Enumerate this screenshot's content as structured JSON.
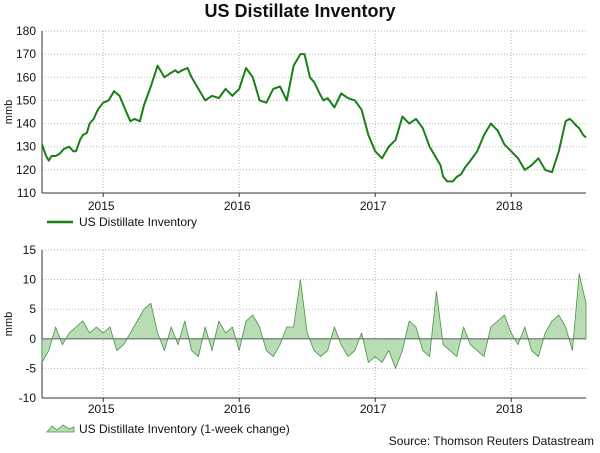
{
  "title": "US Distillate Inventory",
  "source": "Source: Thomson Reuters Datastream",
  "colors": {
    "line": "#1a7f14",
    "area_fill": "#b8dcb3",
    "area_stroke": "#4a9246",
    "grid": "#b5b5b5"
  },
  "chart_data": [
    {
      "type": "line",
      "title": "US Distillate Inventory",
      "ylabel": "mmb",
      "ylim": [
        110,
        180
      ],
      "yticks": [
        110,
        120,
        130,
        140,
        150,
        160,
        170,
        180
      ],
      "xlim": [
        2014.55,
        2018.55
      ],
      "xtick_labels": [
        "2015",
        "2016",
        "2017",
        "2018"
      ],
      "xtick_positions": [
        2015,
        2016,
        2017,
        2018
      ],
      "legend": "bottom-left",
      "grid": true,
      "series": [
        {
          "name": "US Distillate Inventory",
          "x": [
            2014.55,
            2014.58,
            2014.6,
            2014.62,
            2014.65,
            2014.68,
            2014.71,
            2014.75,
            2014.78,
            2014.8,
            2014.83,
            2014.85,
            2014.88,
            2014.9,
            2014.93,
            2014.96,
            2015.0,
            2015.04,
            2015.08,
            2015.12,
            2015.17,
            2015.2,
            2015.23,
            2015.27,
            2015.3,
            2015.35,
            2015.4,
            2015.45,
            2015.5,
            2015.53,
            2015.55,
            2015.58,
            2015.62,
            2015.65,
            2015.7,
            2015.75,
            2015.8,
            2015.85,
            2015.9,
            2015.95,
            2016.0,
            2016.05,
            2016.1,
            2016.15,
            2016.2,
            2016.25,
            2016.3,
            2016.35,
            2016.4,
            2016.45,
            2016.48,
            2016.5,
            2016.52,
            2016.55,
            2016.6,
            2016.62,
            2016.65,
            2016.7,
            2016.75,
            2016.8,
            2016.85,
            2016.9,
            2016.95,
            2017.0,
            2017.05,
            2017.1,
            2017.15,
            2017.2,
            2017.25,
            2017.3,
            2017.35,
            2017.4,
            2017.45,
            2017.48,
            2017.5,
            2017.53,
            2017.57,
            2017.6,
            2017.63,
            2017.66,
            2017.7,
            2017.75,
            2017.8,
            2017.85,
            2017.9,
            2017.95,
            2018.0,
            2018.05,
            2018.1,
            2018.15,
            2018.2,
            2018.25,
            2018.3,
            2018.35,
            2018.4,
            2018.43,
            2018.45,
            2018.48,
            2018.5,
            2018.53,
            2018.55
          ],
          "y": [
            131,
            126,
            124,
            126,
            126,
            127,
            129,
            130,
            128,
            128,
            133,
            135,
            136,
            140,
            142,
            146,
            149,
            150,
            154,
            152,
            145,
            141,
            142,
            141,
            148,
            156,
            165,
            160,
            162,
            163,
            162,
            163,
            164,
            160,
            155,
            150,
            152,
            151,
            155,
            152,
            155,
            164,
            160,
            150,
            149,
            155,
            156,
            150,
            165,
            170,
            170,
            165,
            160,
            158,
            152,
            150,
            151,
            147,
            153,
            151,
            150,
            146,
            135,
            128,
            125,
            130,
            133,
            143,
            140,
            142,
            138,
            130,
            125,
            122,
            117,
            115,
            115,
            117,
            118,
            121,
            124,
            128,
            135,
            140,
            137,
            131,
            128,
            125,
            120,
            122,
            125,
            120,
            119,
            128,
            141,
            142,
            141,
            139,
            138,
            135,
            134
          ]
        }
      ]
    },
    {
      "type": "area",
      "ylabel": "mmb",
      "ylim": [
        -10,
        15
      ],
      "yticks": [
        -10,
        -5,
        0,
        5,
        10,
        15
      ],
      "xlim": [
        2014.55,
        2018.55
      ],
      "xtick_labels": [
        "2015",
        "2016",
        "2017",
        "2018"
      ],
      "xtick_positions": [
        2015,
        2016,
        2017,
        2018
      ],
      "legend": "bottom-left",
      "grid": true,
      "series": [
        {
          "name": "US Distillate Inventory (1-week change)",
          "x": [
            2014.55,
            2014.6,
            2014.65,
            2014.7,
            2014.75,
            2014.8,
            2014.85,
            2014.9,
            2014.95,
            2015.0,
            2015.05,
            2015.1,
            2015.15,
            2015.2,
            2015.25,
            2015.3,
            2015.35,
            2015.4,
            2015.45,
            2015.5,
            2015.55,
            2015.6,
            2015.65,
            2015.7,
            2015.75,
            2015.8,
            2015.85,
            2015.9,
            2015.95,
            2016.0,
            2016.05,
            2016.1,
            2016.15,
            2016.2,
            2016.25,
            2016.3,
            2016.35,
            2016.4,
            2016.45,
            2016.5,
            2016.55,
            2016.6,
            2016.65,
            2016.7,
            2016.75,
            2016.8,
            2016.85,
            2016.9,
            2016.95,
            2017.0,
            2017.05,
            2017.1,
            2017.15,
            2017.2,
            2017.25,
            2017.3,
            2017.35,
            2017.4,
            2017.45,
            2017.5,
            2017.55,
            2017.6,
            2017.65,
            2017.7,
            2017.75,
            2017.8,
            2017.85,
            2017.9,
            2017.95,
            2018.0,
            2018.05,
            2018.1,
            2018.15,
            2018.2,
            2018.25,
            2018.3,
            2018.35,
            2018.4,
            2018.45,
            2018.5,
            2018.55
          ],
          "y": [
            -4,
            -2,
            2,
            -1,
            1,
            2,
            3,
            1,
            2,
            1,
            2,
            -2,
            -1,
            1,
            3,
            5,
            6,
            1,
            -2,
            2,
            -1,
            3,
            -2,
            -3,
            2,
            -2,
            3,
            1,
            2,
            -2,
            3,
            4,
            2,
            -2,
            -3,
            -1,
            2,
            2,
            10,
            1,
            -2,
            -3,
            -2,
            2,
            -1,
            -3,
            -2,
            1,
            -4,
            -3,
            -4,
            -2,
            -5,
            -2,
            3,
            2,
            -2,
            -3,
            8,
            -1,
            -2,
            -3,
            2,
            -1,
            -2,
            -3,
            2,
            3,
            4,
            1,
            -1,
            2,
            -2,
            -3,
            1,
            3,
            4,
            2,
            -2,
            11,
            6
          ]
        }
      ]
    }
  ]
}
